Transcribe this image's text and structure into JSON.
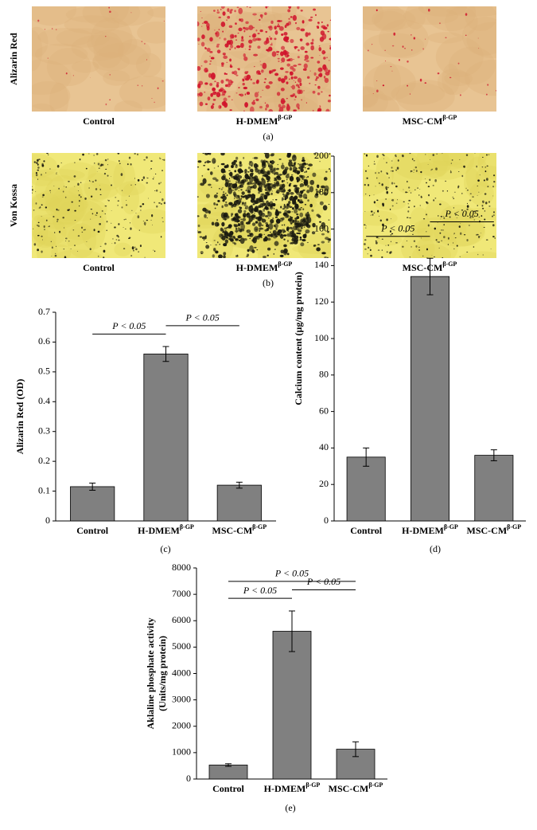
{
  "panels": [
    {
      "row_label": "Alizarin Red",
      "labels": [
        "Control",
        "H-DMEM",
        "MSC-CM"
      ],
      "label_superscripts": [
        null,
        "β-GP",
        "β-GP"
      ],
      "caption": "(a)"
    },
    {
      "row_label": "Von Kossa",
      "labels": [
        "Control",
        "H-DMEM",
        "MSC-CM"
      ],
      "label_superscripts": [
        null,
        "β-GP",
        "β-GP"
      ],
      "caption": "(b)"
    }
  ],
  "chart_data": [
    {
      "type": "bar",
      "ylabel": "Alizarin Red (OD)",
      "caption": "(c)",
      "categories": [
        "Control",
        "H-DMEM",
        "MSC-CM"
      ],
      "category_superscripts": [
        null,
        "β-GP",
        "β-GP"
      ],
      "values": [
        0.115,
        0.56,
        0.12
      ],
      "errors": [
        0.012,
        0.025,
        0.01
      ],
      "color": "#808080",
      "ylim": [
        0,
        0.7
      ],
      "yticks": [
        0,
        0.1,
        0.2,
        0.3,
        0.4,
        0.5,
        0.6,
        0.7
      ],
      "annotations": [
        {
          "text": "P < 0.05",
          "from": 0,
          "to": 1
        },
        {
          "text": "P < 0.05",
          "from": 1,
          "to": 2
        }
      ]
    },
    {
      "type": "bar",
      "ylabel": "Calcium content (μg/mg protein)",
      "caption": "(d)",
      "categories": [
        "Control",
        "H-DMEM",
        "MSC-CM"
      ],
      "category_superscripts": [
        null,
        "β-GP",
        "β-GP"
      ],
      "values": [
        35,
        134,
        36
      ],
      "errors": [
        5,
        10,
        3
      ],
      "color": "#808080",
      "ylim": [
        0,
        200
      ],
      "yticks": [
        0,
        20,
        40,
        60,
        80,
        100,
        120,
        140,
        160,
        180,
        200
      ],
      "annotations": [
        {
          "text": "P < 0.05",
          "from": 0,
          "to": 1
        },
        {
          "text": "P < 0.05",
          "from": 1,
          "to": 2
        }
      ]
    },
    {
      "type": "bar",
      "ylabel": [
        "Aklaline phosphate activity",
        "(Units/mg protein)"
      ],
      "caption": "(e)",
      "categories": [
        "Control",
        "H-DMEM",
        "MSC-CM"
      ],
      "category_superscripts": [
        null,
        "β-GP",
        "β-GP"
      ],
      "values": [
        530,
        5600,
        1130
      ],
      "errors": [
        50,
        770,
        280
      ],
      "color": "#808080",
      "ylim": [
        0,
        8000
      ],
      "yticks": [
        0,
        1000,
        2000,
        3000,
        4000,
        5000,
        6000,
        7000,
        8000
      ],
      "annotations": [
        {
          "text": "P < 0.05",
          "from": 0,
          "to": 1
        },
        {
          "text": "P < 0.05",
          "from": 1,
          "to": 2
        },
        {
          "text": "P < 0.05",
          "from": 0,
          "to": 2
        }
      ]
    }
  ]
}
